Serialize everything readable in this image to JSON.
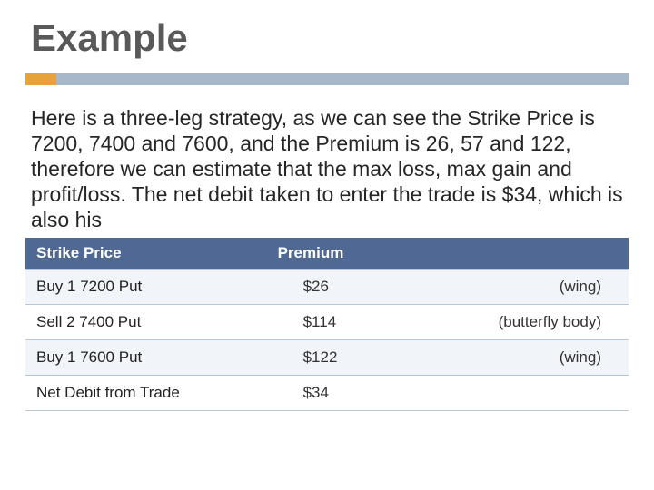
{
  "slide": {
    "title": "Example",
    "body": "Here is a three-leg strategy, as we can see the Strike Price is 7200, 7400 and 7600, and the Premium is 26, 57 and 122, therefore we can estimate that the max loss, max gain and profit/loss. The net debit taken to enter the trade is $34, which is also his"
  },
  "accent": {
    "small_color": "#e5a33a",
    "large_color": "#a7b8cb"
  },
  "table": {
    "header_bg": "#4f6894",
    "row_odd_bg": "#f1f4f8",
    "row_even_bg": "#ffffff",
    "border_color": "#b9c6d6",
    "columns": [
      "Strike Price",
      "Premium",
      ""
    ],
    "rows": [
      {
        "strike": "Buy 1 7200 Put",
        "premium": "$26",
        "type": "(wing)"
      },
      {
        "strike": "Sell 2 7400 Put",
        "premium": "$114",
        "type": "(butterfly body)"
      },
      {
        "strike": "Buy 1 7600 Put",
        "premium": "$122",
        "type": "(wing)"
      },
      {
        "strike": "Net Debit from Trade",
        "premium": "$34",
        "type": ""
      }
    ]
  }
}
